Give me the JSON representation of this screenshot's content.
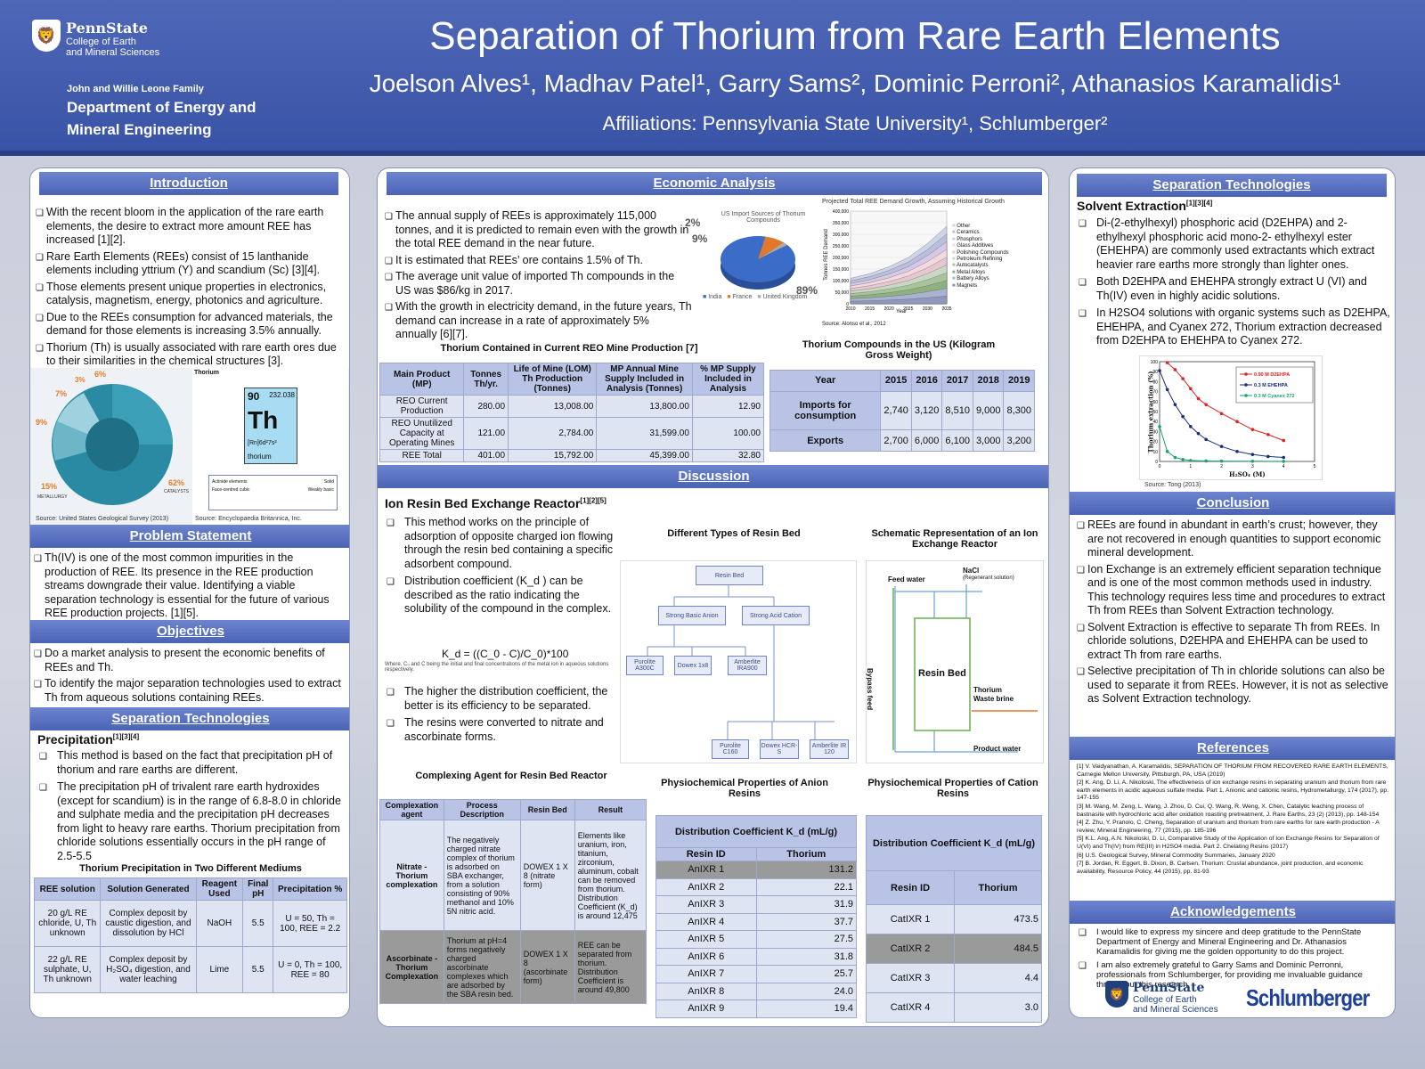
{
  "header": {
    "logo_name": "PennState",
    "logo_sub1": "College of Earth",
    "logo_sub2": "and Mineral Sciences",
    "dept_small": "John and Willie Leone Family",
    "dept_line1": "Department of Energy and",
    "dept_line2": "Mineral Engineering",
    "title": "Separation of Thorium from Rare Earth Elements",
    "authors": "Joelson Alves¹, Madhav Patel¹, Garry Sams², Dominic Perroni², Athanasios Karamalidis¹",
    "affiliations": "Affiliations: Pennsylvania State University¹, Schlumberger²"
  },
  "intro": {
    "heading": "Introduction",
    "b1": "With the recent bloom in the application of the rare earth elements, the desire to extract more amount REE has increased [1][2].",
    "b2": "Rare Earth Elements (REEs) consist of 15 lanthanide elements including yttrium (Y) and scandium (Sc) [3][4].",
    "b3": "Those elements present unique properties in electronics, catalysis, magnetism, energy, photonics and agriculture.",
    "b4": "Due to the REEs consumption for advanced materials, the demand for those elements is increasing 3.5% annually.",
    "b5": "Thorium (Th) is usually associated with rare earth ores due to their similarities in the chemical structures [3].",
    "fig_src1": "Source: United States Geological Survey (2013)",
    "fig_src2": "Source: Encyclopaedia Britannica, Inc.",
    "th_label": "Thorium",
    "th_num": "90",
    "th_mass": "232.038",
    "th_sym": "Th",
    "th_name": "thorium",
    "th_config": "[Rn]6d²7s²",
    "pie_pcts": [
      "6%",
      "3%",
      "7%",
      "9%",
      "15%",
      "62%"
    ],
    "pie_labels": [
      "METALLURGY",
      "CATALYSTS"
    ],
    "legend": [
      "Actinide elements",
      "Solid",
      "Face-centred cubic",
      "Weakly basic"
    ]
  },
  "problem": {
    "heading": "Problem Statement",
    "text": "Th(IV) is one of the most common impurities in the production of REE. Its presence in the REE production streams downgrade their value. Identifying a viable separation technology is essential for the future of various REE production projects. [1][5]."
  },
  "objectives": {
    "heading": "Objectives",
    "b1": "Do a market analysis to present the economic benefits of REEs and Th.",
    "b2": "To identify the major separation technologies used to extract Th from aqueous solutions containing REEs."
  },
  "sep_left": {
    "heading": "Separation Technologies",
    "sub": "Precipitation",
    "sub_ref": "[1][3][4]",
    "b1": "This method is based on the fact that precipitation pH of thorium and rare earths are different.",
    "b2": "The precipitation pH of trivalent rare earth hydroxides (except for scandium) is in the range of 6.8-8.0 in chloride and sulphate media and the precipitation pH decreases from light to heavy rare earths. Thorium precipitation from chloride solutions essentially occurs in the pH range of 2.5-5.5",
    "table_title": "Thorium Precipitation in Two Different Mediums",
    "cols": [
      "REE solution",
      "Solution Generated",
      "Reagent Used",
      "Final pH",
      "Precipitation %"
    ],
    "rows": [
      [
        "20 g/L RE chloride, U, Th unknown",
        "Complex deposit by caustic digestion, and dissolution by HCl",
        "NaOH",
        "5.5",
        "U = 50, Th = 100, REE = 2.2"
      ],
      [
        "22 g/L RE sulphate, U, Th unknown",
        "Complex deposit by H₂SO₄ digestion, and water leaching",
        "Lime",
        "5.5",
        "U = 0, Th = 100, REE = 80"
      ]
    ]
  },
  "econ": {
    "heading": "Economic Analysis",
    "b1": "The annual supply of REEs is approximately 115,000 tonnes, and it is predicted to remain even with the growth in the total REE demand in the near future.",
    "b2": "It is estimated that REEs’ ore contains 1.5% of Th.",
    "b3": "The average unit value of imported Th compounds in the US was $86/kg in 2017.",
    "b4": "With the growth in electricity demand, in the future years, Th demand can increase in a rate of approximately 5% annually [6][7].",
    "pie_title": "US Import Sources of Thorium Compounds",
    "pie_legend": [
      "India",
      "France",
      "United Kingdom"
    ],
    "pie_pcts": [
      "2%",
      "9%",
      "89%"
    ],
    "area_title": "Projected Total REE Demand Growth, Assuming Historical Growth",
    "area_ylabel": "Tonnes REE Demand",
    "area_xlabel": "Year",
    "area_source": "Source: Alonso et al., 2012",
    "area_legend": [
      "Other",
      "Ceramics",
      "Phosphors",
      "Glass Additives",
      "Polishing Compounds",
      "Petroleum Refining",
      "Autocatalysts",
      "Metal Alloys",
      "Battery Alloys",
      "Magnets"
    ],
    "area_yticks": [
      "400,000",
      "350,000",
      "300,000",
      "250,000",
      "200,000",
      "150,000",
      "100,000",
      "50,000",
      "0"
    ],
    "area_xticks": [
      "2010",
      "2015",
      "2020",
      "2025",
      "2030",
      "2035"
    ],
    "t1_title": "Thorium Contained in Current REO Mine Production [7]",
    "t1_cols": [
      "Main Product (MP)",
      "Tonnes Th/yr.",
      "Life of Mine (LOM) Th Production (Tonnes)",
      "MP Annual Mine Supply Included in Analysis (Tonnes)",
      "% MP Supply Included in Analysis"
    ],
    "t1_rows": [
      [
        "REO Current Production",
        "280.00",
        "13,008.00",
        "13,800.00",
        "12.90"
      ],
      [
        "REO Unutilized Capacity at Operating Mines",
        "121.00",
        "2,784.00",
        "31,599.00",
        "100.00"
      ],
      [
        "REE Total",
        "401.00",
        "15,792.00",
        "45,399.00",
        "32.80"
      ]
    ],
    "t2_title": "Thorium Compounds in the US (Kilogram Gross Weight)",
    "t2_cols": [
      "Year",
      "2015",
      "2016",
      "2017",
      "2018",
      "2019"
    ],
    "t2_rows": [
      [
        "Imports for consumption",
        "2,740",
        "3,120",
        "8,510",
        "9,000",
        "8,300"
      ],
      [
        "Exports",
        "2,700",
        "6,000",
        "6,100",
        "3,000",
        "3,200"
      ]
    ]
  },
  "chart_data": [
    {
      "type": "pie",
      "title": "US Import Sources of Thorium Compounds",
      "categories": [
        "India",
        "France",
        "United Kingdom"
      ],
      "values": [
        89,
        9,
        2
      ]
    },
    {
      "type": "area",
      "title": "Projected Total REE Demand Growth, Assuming Historical Growth",
      "xlabel": "Year",
      "ylabel": "Tonnes REE Demand",
      "x": [
        2010,
        2015,
        2020,
        2025,
        2030,
        2035
      ],
      "ylim": [
        0,
        400000
      ],
      "total": [
        110000,
        130000,
        160000,
        200000,
        260000,
        335000
      ]
    },
    {
      "type": "line",
      "xlabel": "H₂SO₄ (M)",
      "ylabel": "Thorium extraction (%)",
      "ylim": [
        0,
        100
      ],
      "xlim": [
        0,
        5
      ],
      "series": [
        {
          "name": "0.90 M D2EHPA",
          "x": [
            0.25,
            0.5,
            0.75,
            1,
            1.25,
            1.5,
            2,
            2.5,
            3,
            3.5,
            4
          ],
          "values": [
            99,
            92,
            83,
            73,
            63,
            57,
            48,
            40,
            32,
            27,
            21
          ]
        },
        {
          "name": "0.3 M EHEHPA",
          "x": [
            0,
            0.25,
            0.5,
            0.75,
            1,
            1.25,
            1.5,
            2,
            2.5,
            3,
            3.5,
            4
          ],
          "values": [
            91,
            72,
            57,
            45,
            35,
            28,
            22,
            15,
            10,
            7,
            5,
            4
          ]
        },
        {
          "name": "0.3 M Cyanex 272",
          "x": [
            0,
            0.25,
            0.5,
            0.75,
            1,
            1.5,
            2,
            3,
            4
          ],
          "values": [
            35,
            10,
            4,
            2,
            1,
            0.5,
            0.3,
            0.2,
            0.1
          ]
        }
      ]
    }
  ],
  "discussion": {
    "heading": "Discussion",
    "sub": "Ion Resin Bed Exchange Reactor",
    "sub_ref": "[1][2][5]",
    "b1": "This method works on the principle of adsorption of opposite charged ion flowing through the resin bed containing a specific adsorbent compound.",
    "b2": "Distribution coefficient (K_d ) can be described as the ratio indicating the solubility of the compound in the complex.",
    "formula": "K_d = ((C_0 - C)/C_0)*100",
    "formula_note": "Where, C₀ and C being the initial and final concentrations of the metal ion in aqueous solutions respectively.",
    "b3": "The higher the distribution coefficient, the better is its efficiency to be separated.",
    "b4": "The resins were converted to nitrate and ascorbinate forms.",
    "fig1_title": "Different Types of Resin Bed",
    "tree": [
      "Resin Bed",
      "Strong Basic Anion",
      "Strong Acid Cation",
      "Purolite A300C",
      "Dowex 1x8",
      "Amberlite IRA900",
      "Purolite C160",
      "Dowex HCR-S",
      "Amberlite IR 120"
    ],
    "fig2_title": "Schematic Representation of an Ion Exchange Reactor",
    "sch": [
      "Feed water",
      "NaCl",
      "(Regenerant solution)",
      "Bypass feed",
      "Resin Bed",
      "Thorium",
      "Waste brine",
      "Product water"
    ],
    "t3_title": "Complexing Agent for Resin Bed Reactor",
    "t3_cols": [
      "Complexation agent",
      "Process Description",
      "Resin Bed",
      "Result"
    ],
    "t3_rows": [
      [
        "Nitrate - Thorium complexation",
        "The negatively charged nitrate complex of thorium is adsorbed on SBA exchanger, from a solution consisting of 90% methanol and 10% 5N nitric acid.",
        "DOWEX 1 X 8 (nitrate form)",
        "Elements like uranium, iron, titanium, zirconium, aluminum, cobalt can be removed from thorium. Distribution Coefficient (K_d) is around 12,475"
      ],
      [
        "Ascorbinate - Thorium Complexation",
        "Thorium at pH=4 forms negatively charged ascorbinate complexes which are adsorbed by the SBA resin bed.",
        "DOWEX 1 X 8 (ascorbinate form)",
        "REE can be separated from thorium. Distribution Coefficient is around 49,800"
      ]
    ],
    "t4_title": "Physiochemical Properties of Anion Resins",
    "t4_head": "Distribution Coefficient K_d (mL/g)",
    "t4_cols": [
      "Resin ID",
      "Thorium"
    ],
    "t4_rows": [
      [
        "AnIXR 1",
        "131.2"
      ],
      [
        "AnIXR 2",
        "22.1"
      ],
      [
        "AnIXR 3",
        "31.9"
      ],
      [
        "AnIXR 4",
        "37.7"
      ],
      [
        "AnIXR 5",
        "27.5"
      ],
      [
        "AnIXR 6",
        "31.8"
      ],
      [
        "AnIXR 7",
        "25.7"
      ],
      [
        "AnIXR 8",
        "24.0"
      ],
      [
        "AnIXR 9",
        "19.4"
      ]
    ],
    "t5_title": "Physiochemical Properties of Cation Resins",
    "t5_head": "Distribution Coefficient K_d (mL/g)",
    "t5_cols": [
      "Resin ID",
      "Thorium"
    ],
    "t5_rows": [
      [
        "CatIXR 1",
        "473.5"
      ],
      [
        "CatIXR 2",
        "484.5"
      ],
      [
        "CatIXR 3",
        "4.4"
      ],
      [
        "CatIXR 4",
        "3.0"
      ]
    ]
  },
  "sep_right": {
    "heading": "Separation Technologies",
    "sub": "Solvent Extraction",
    "sub_ref": "[1][3][4]",
    "b1": "Di-(2-ethylhexyl) phosphoric acid (D2EHPA) and 2-ethylhexyl phosphoric acid mono-2- ethylhexyl ester (EHEHPA) are commonly used extractants which extract heavier rare earths more strongly than lighter ones.",
    "b2": "Both D2EHPA and EHEHPA strongly extract U (VI) and Th(IV) even in highly acidic solutions.",
    "b3": "In H2SO4 solutions with organic systems such as D2EHPA, EHEHPA, and Cyanex 272, Thorium extraction decreased from D2EHPA to EHEHPA to Cyanex 272.",
    "chart_src": "Source: Tong (2013)",
    "chart_ylabel": "Thorium extraction (%)",
    "chart_xlabel": "H₂SO₄ (M)",
    "legend": [
      "0.90 M D2EHPA",
      "0.3 M EHEHPA",
      "0.3 M Cyanex 272"
    ]
  },
  "conclusion": {
    "heading": "Conclusion",
    "b1": "REEs are found in abundant in earth’s crust; however, they are not recovered in enough quantities to support economic mineral development.",
    "b2": "Ion Exchange is an extremely efficient separation technique and is one of the most common methods used in industry. This technology requires less time and procedures to extract Th from REEs than Solvent Extraction technology.",
    "b3": "Solvent Extraction is effective to separate Th from REEs. In chloride solutions, D2EHPA and EHEHPA can be used to extract Th from rare earths.",
    "b4": "Selective precipitation of Th in chloride solutions can also be used to separate it from REEs. However, it is not as selective as Solvent Extraction technology."
  },
  "references": {
    "heading": "References",
    "items": [
      "[1] V. Vaidyanathan, A. Karamalidis, SEPARATION OF THORIUM FROM RECOVERED RARE EARTH ELEMENTS, Carnegie Mellon University, Pittsburgh, PA, USA (2019)",
      "[2] K. Ang, D. Li, A. Nikoloski, The effectiveness of ion exchange resins in separating uranium and thorium from rare earth elements in acidic aqueous sulfate media. Part 1. Anionic and cationic resins, Hydrometallurgy, 174 (2017), pp. 147-155",
      "[3] M. Wang, M. Zeng, L. Wang, J. Zhou, D. Cui, Q. Wang, R. Weng, X. Chen, Catalytic leaching process of bastnasite with hydrochloric acid after oxidation roasting pretreatment, J. Rare Earths, 23 (2) (2013), pp. 148-154",
      "[4] Z. Zhu, Y. Pranolo, C. Cheng, Separation of uranium and thorium from rare earths for rare earth production - A review, Mineral Engineering, 77 (2015), pp. 185-196",
      "[5] K.L. Ang, A.N. Nikoloski, D. Li, Comparative Study of the Application of Ion Exchange Resins for Separation of U(VI) and Th(IV) from RE(III) in H2SO4 media. Part 2. Chelating Resins (2017)",
      "[6] U.S. Geological Survey, Mineral Commodity Summaries, January 2020",
      "[7] B. Jordan, R. Eggert, B. Dixon, B. Carlsen, Thorium: Crustal abundance, joint production, and economic availability, Resource Policy, 44 (2015), pp. 81-93"
    ]
  },
  "ack": {
    "heading": "Acknowledgements",
    "b1": "I would like to express my sincere and deep gratitude to the PennState Department of Energy and Mineral Engineering and Dr. Athanasios Karamalidis for giving me the golden opportunity to do this project.",
    "b2": "I am also extremely grateful to Garry Sams and Dominic Perronni, professionals from Schlumberger, for providing me invaluable guidance throughout this research.",
    "logo1": "PennState",
    "logo1_sub1": "College of Earth",
    "logo1_sub2": "and Mineral Sciences",
    "logo2": "Schlumberger"
  },
  "colors": {
    "header": "#3953a6",
    "band": "#5068bb",
    "table_head": "#b9c3e6",
    "highlight": "#9a9a9a"
  }
}
